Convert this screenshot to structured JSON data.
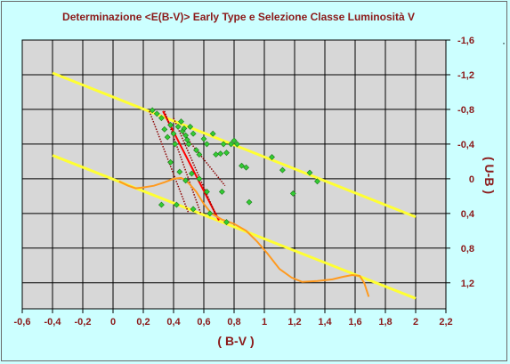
{
  "colors": {
    "background": "#ccffff",
    "plot_area": "#d7d7d7",
    "grid": "#000000",
    "yellow_lines": "#ffff33",
    "orange_curve": "#ff9a1f",
    "red_line": "#ff0000",
    "dark_red_lines": "#8b0000",
    "points": "#33cc33",
    "label_color": "#8b1a1a"
  },
  "corner_mark": "·",
  "chart_data": {
    "type": "scatter",
    "title": "Determinazione <E(B-V)> Early Type e Selezione Classe Luminosità V",
    "xlabel": "( B-V )",
    "ylabel": "( U-B )",
    "xlim": [
      -0.6,
      2.2
    ],
    "ylim": [
      -1.6,
      1.5
    ],
    "y_inverted": true,
    "grid": true,
    "x_ticks": [
      -0.6,
      -0.4,
      -0.2,
      0,
      0.2,
      0.4,
      0.6,
      0.8,
      1,
      1.2,
      1.4,
      1.6,
      1.8,
      2,
      2.2
    ],
    "x_tick_labels": [
      "-0,6",
      "-0,4",
      "-0,2",
      "0",
      "0,2",
      "0,4",
      "0,6",
      "0,8",
      "1",
      "1,2",
      "1,4",
      "1,6",
      "1,8",
      "2",
      "2,2"
    ],
    "y_ticks": [
      -1.6,
      -1.2,
      -0.8,
      -0.4,
      0,
      0.4,
      0.8,
      1.2
    ],
    "y_tick_labels": [
      "-1,6",
      "-1,2",
      "-0,8",
      "-0,4",
      "0",
      "0,4",
      "0,8",
      "1,2"
    ],
    "points": [
      [
        0.26,
        -0.79
      ],
      [
        0.29,
        -0.75
      ],
      [
        0.32,
        -0.7
      ],
      [
        0.34,
        -0.57
      ],
      [
        0.36,
        -0.48
      ],
      [
        0.38,
        -0.62
      ],
      [
        0.4,
        -0.52
      ],
      [
        0.41,
        -0.4
      ],
      [
        0.43,
        -0.6
      ],
      [
        0.45,
        -0.66
      ],
      [
        0.46,
        -0.55
      ],
      [
        0.47,
        -0.58
      ],
      [
        0.48,
        -0.5
      ],
      [
        0.49,
        -0.45
      ],
      [
        0.5,
        -0.4
      ],
      [
        0.51,
        -0.6
      ],
      [
        0.53,
        -0.52
      ],
      [
        0.55,
        -0.33
      ],
      [
        0.57,
        -0.28
      ],
      [
        0.6,
        -0.46
      ],
      [
        0.62,
        -0.4
      ],
      [
        0.66,
        -0.52
      ],
      [
        0.68,
        -0.28
      ],
      [
        0.71,
        -0.29
      ],
      [
        0.73,
        -0.4
      ],
      [
        0.75,
        -0.3
      ],
      [
        0.78,
        -0.4
      ],
      [
        0.8,
        -0.44
      ],
      [
        0.82,
        -0.4
      ],
      [
        0.85,
        -0.15
      ],
      [
        0.88,
        -0.13
      ],
      [
        0.38,
        -0.19
      ],
      [
        0.44,
        -0.08
      ],
      [
        0.48,
        0.02
      ],
      [
        0.52,
        -0.06
      ],
      [
        0.57,
        0.0
      ],
      [
        0.62,
        0.15
      ],
      [
        0.72,
        0.15
      ],
      [
        0.9,
        0.27
      ],
      [
        1.05,
        -0.25
      ],
      [
        1.12,
        -0.1
      ],
      [
        1.19,
        0.17
      ],
      [
        1.3,
        -0.07
      ],
      [
        1.35,
        0.03
      ],
      [
        0.32,
        0.3
      ],
      [
        0.42,
        0.3
      ],
      [
        0.53,
        0.35
      ],
      [
        0.64,
        0.4
      ],
      [
        0.75,
        0.5
      ]
    ],
    "lines": [
      {
        "color": "yellow",
        "points": [
          [
            -0.4,
            -1.22
          ],
          [
            2.0,
            0.44
          ]
        ]
      },
      {
        "color": "yellow",
        "points": [
          [
            -0.4,
            -0.27
          ],
          [
            2.0,
            1.38
          ]
        ]
      },
      {
        "color": "red",
        "points": [
          [
            0.33,
            -0.78
          ],
          [
            0.7,
            0.48
          ]
        ]
      },
      {
        "color": "dark red dotted",
        "points": [
          [
            0.24,
            -0.78
          ],
          [
            0.5,
            0.4
          ]
        ]
      },
      {
        "color": "dark red dotted",
        "points": [
          [
            0.34,
            -0.78
          ],
          [
            0.58,
            0.4
          ]
        ]
      },
      {
        "color": "dark red dotted",
        "points": [
          [
            0.4,
            -0.7
          ],
          [
            0.68,
            0.42
          ]
        ]
      },
      {
        "color": "dark red dotted",
        "points": [
          [
            0.45,
            -0.55
          ],
          [
            0.74,
            0.08
          ]
        ]
      }
    ],
    "curve": {
      "color": "orange",
      "points": [
        [
          0.04,
          0.03
        ],
        [
          0.1,
          0.08
        ],
        [
          0.15,
          0.11
        ],
        [
          0.2,
          0.1
        ],
        [
          0.27,
          0.08
        ],
        [
          0.34,
          0.04
        ],
        [
          0.4,
          0.0
        ],
        [
          0.45,
          -0.01
        ],
        [
          0.48,
          0.02
        ],
        [
          0.5,
          0.05
        ],
        [
          0.55,
          0.15
        ],
        [
          0.6,
          0.29
        ],
        [
          0.65,
          0.4
        ],
        [
          0.72,
          0.47
        ],
        [
          0.8,
          0.52
        ],
        [
          0.88,
          0.6
        ],
        [
          0.95,
          0.72
        ],
        [
          1.02,
          0.86
        ],
        [
          1.1,
          1.04
        ],
        [
          1.18,
          1.14
        ],
        [
          1.25,
          1.19
        ],
        [
          1.35,
          1.18
        ],
        [
          1.45,
          1.16
        ],
        [
          1.52,
          1.13
        ],
        [
          1.58,
          1.11
        ],
        [
          1.63,
          1.12
        ],
        [
          1.66,
          1.2
        ],
        [
          1.69,
          1.36
        ]
      ]
    }
  }
}
